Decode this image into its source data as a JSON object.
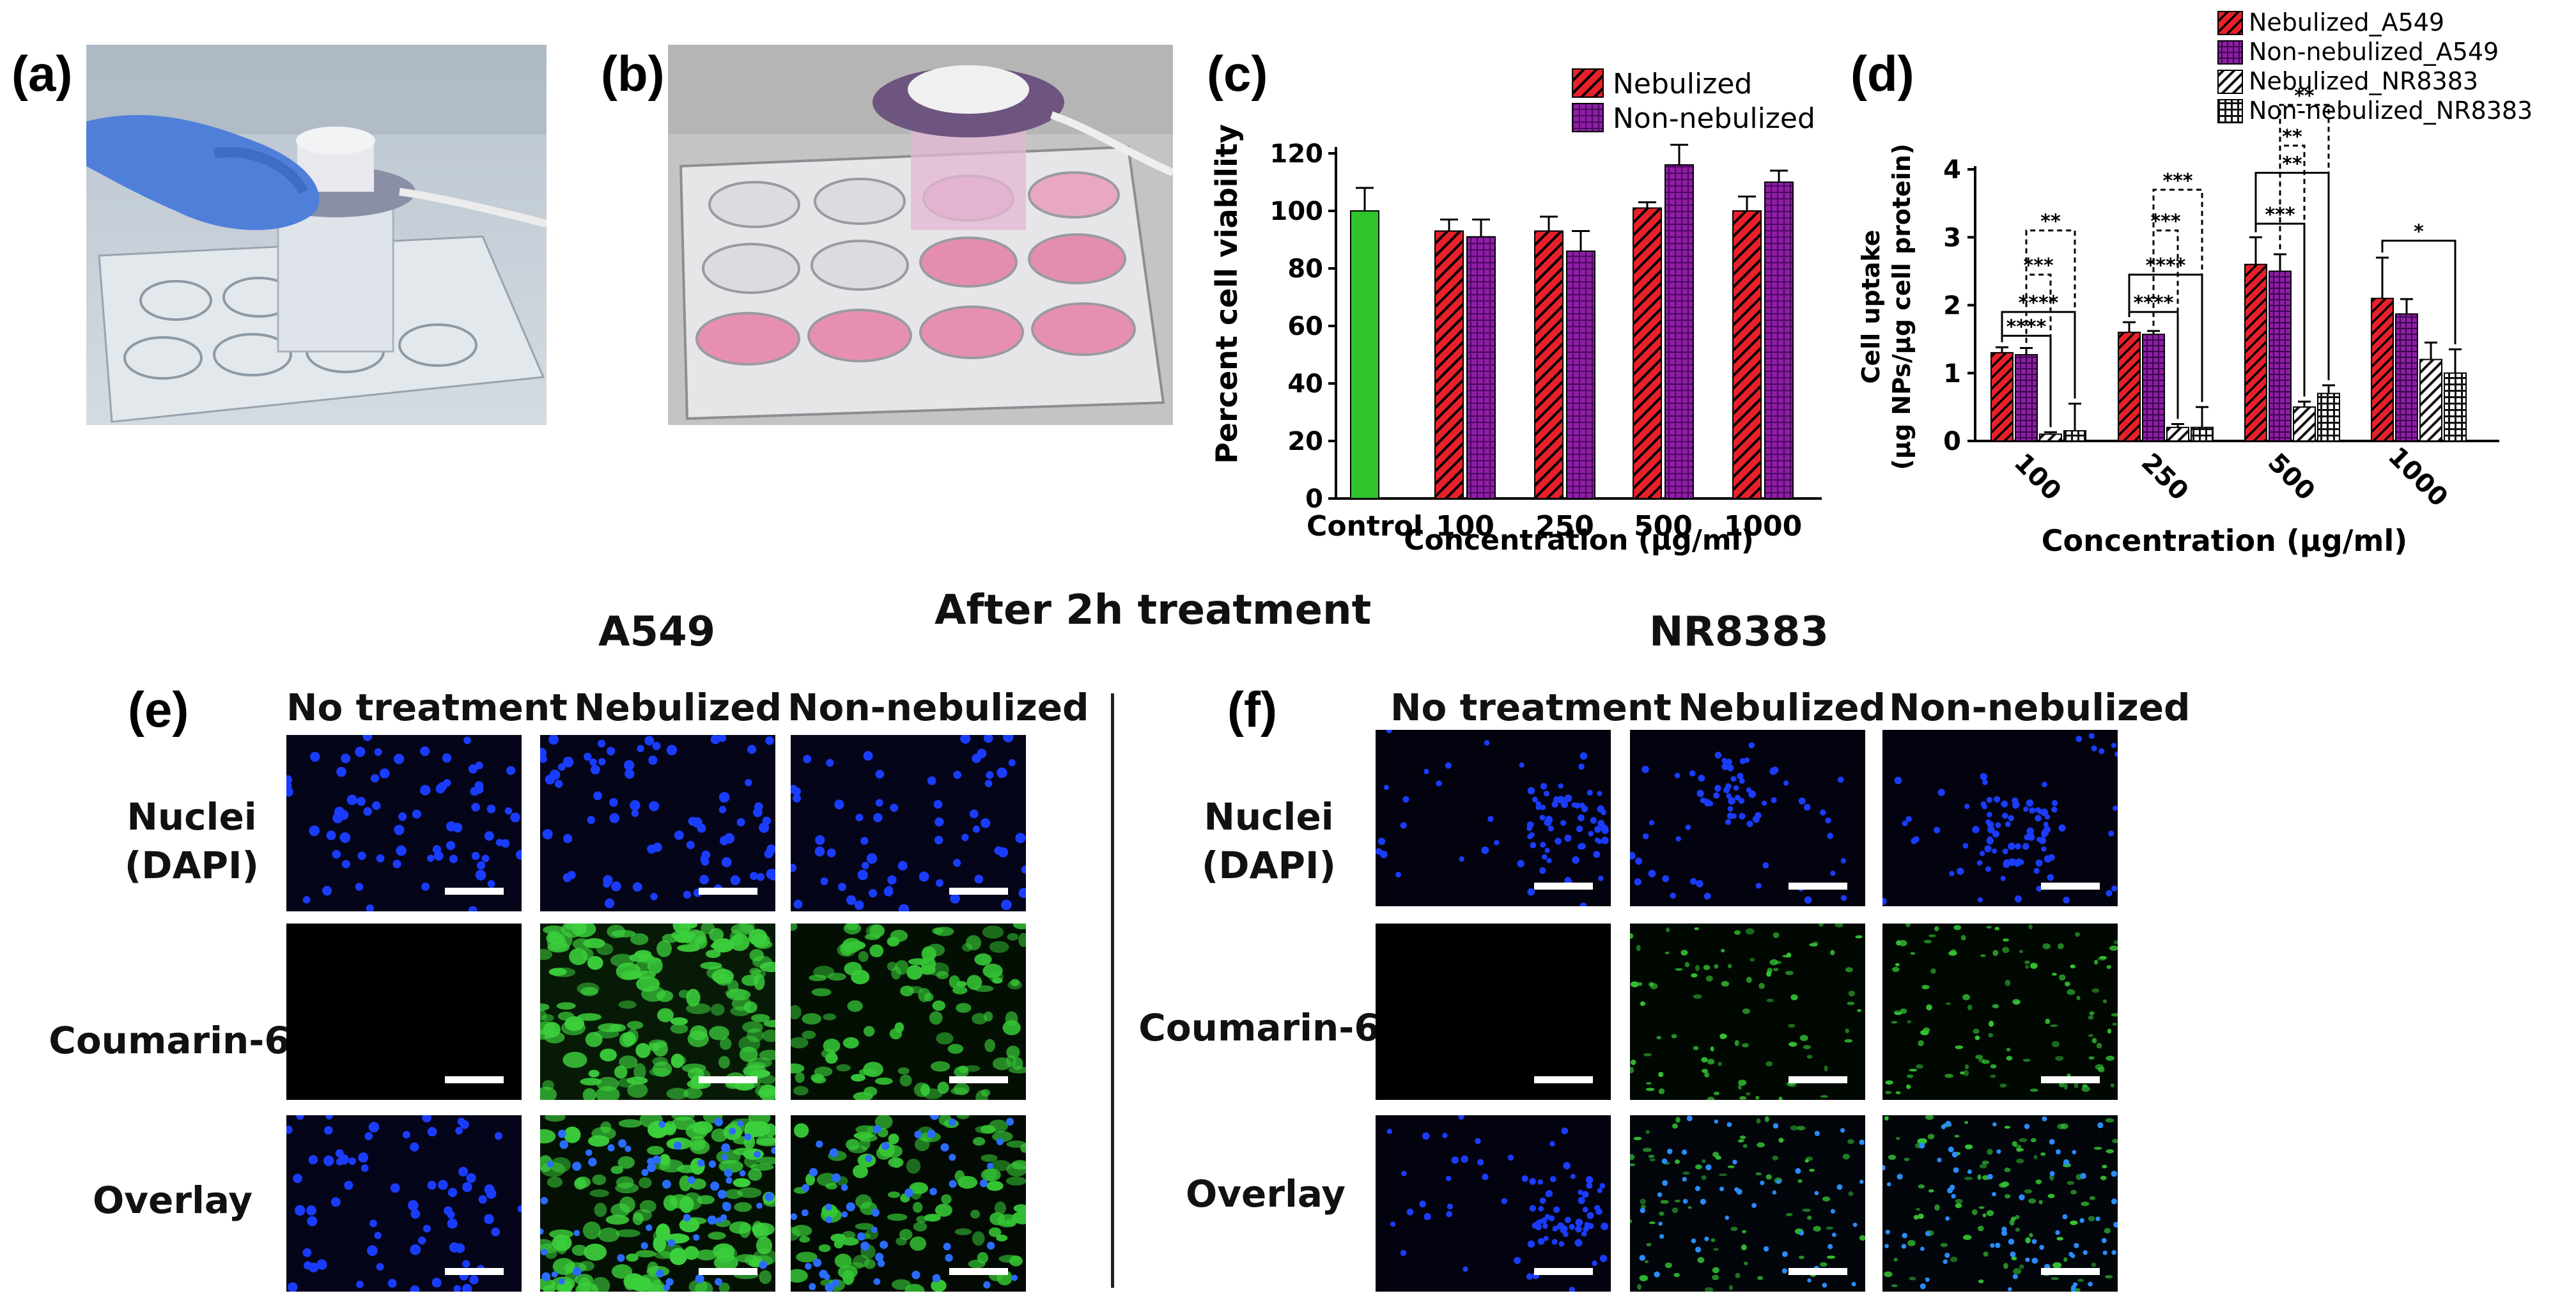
{
  "panel_labels": {
    "a": "(a)",
    "b": "(b)",
    "c": "(c)",
    "d": "(d)",
    "e": "(e)",
    "f": "(f)"
  },
  "colors": {
    "nebulized_red": "#e8202a",
    "non_nebulized_purple": "#8e1ea4",
    "control_green": "#2ec42a",
    "dapi_blue": "#1a3cff",
    "coumarin_green": "#30c030"
  },
  "chart_data": [
    {
      "id": "c",
      "type": "bar",
      "categories": [
        "Control",
        "100",
        "250",
        "500",
        "1000"
      ],
      "series": [
        {
          "name": "",
          "values": [
            100,
            null,
            null,
            null,
            null
          ],
          "errors": [
            8,
            null,
            null,
            null,
            null
          ],
          "color": "#2ec42a"
        },
        {
          "name": "Nebulized",
          "values": [
            null,
            93,
            93,
            101,
            100
          ],
          "errors": [
            null,
            4,
            5,
            2,
            5
          ],
          "color": "#e8202a"
        },
        {
          "name": "Non-nebulized",
          "values": [
            null,
            91,
            86,
            116,
            110
          ],
          "errors": [
            null,
            6,
            7,
            7,
            4
          ],
          "color": "#8e1ea4"
        }
      ],
      "xlabel": "Concentration (µg/ml)",
      "ylabel": "Percent cell viability",
      "ylim": [
        0,
        120
      ],
      "yticks": [
        "0",
        "20",
        "40",
        "60",
        "80",
        "100",
        "120"
      ],
      "legend": [
        "Nebulized",
        "Non-nebulized"
      ],
      "legend_position": "top-right",
      "grid": false
    },
    {
      "id": "d",
      "type": "bar",
      "categories": [
        "100",
        "250",
        "500",
        "1000"
      ],
      "series": [
        {
          "name": "Nebulized_A549",
          "values": [
            1.3,
            1.6,
            2.6,
            2.1
          ],
          "errors": [
            0.08,
            0.15,
            0.4,
            0.6
          ],
          "color": "#e8202a",
          "pattern": "red-hatch"
        },
        {
          "name": "Non-nebulized_A549",
          "values": [
            1.27,
            1.57,
            2.5,
            1.87
          ],
          "errors": [
            0.1,
            0.05,
            0.25,
            0.22
          ],
          "color": "#8e1ea4",
          "pattern": "purple-grid"
        },
        {
          "name": "Nebulized_NR8383",
          "values": [
            0.1,
            0.2,
            0.5,
            1.2
          ],
          "errors": [
            0.03,
            0.05,
            0.08,
            0.25
          ],
          "color": "#000000",
          "pattern": "black-hatch"
        },
        {
          "name": "Non-nebulized_NR8383",
          "values": [
            0.15,
            0.2,
            0.7,
            1.0
          ],
          "errors": [
            0.4,
            0.3,
            0.12,
            0.35
          ],
          "color": "#000000",
          "pattern": "black-grid"
        }
      ],
      "xlabel": "Concentration (µg/ml)",
      "ylabel": "Cell uptake",
      "ylabel2": "(µg NPs/µg cell protein)",
      "ylim": [
        0,
        4
      ],
      "yticks": [
        "0",
        "1",
        "2",
        "3",
        "4"
      ],
      "legend_position": "top",
      "grid": false,
      "significance": [
        {
          "group": 0,
          "from": 0,
          "to": 2,
          "label": "****",
          "style": "solid",
          "y": 1.55
        },
        {
          "group": 0,
          "from": 0,
          "to": 3,
          "label": "****",
          "style": "solid",
          "y": 1.9
        },
        {
          "group": 0,
          "from": 1,
          "to": 2,
          "label": "***",
          "style": "dashed",
          "y": 2.45
        },
        {
          "group": 0,
          "from": 1,
          "to": 3,
          "label": "**",
          "style": "dashed",
          "y": 3.1
        },
        {
          "group": 1,
          "from": 0,
          "to": 2,
          "label": "****",
          "style": "solid",
          "y": 1.9
        },
        {
          "group": 1,
          "from": 0,
          "to": 3,
          "label": "****",
          "style": "solid",
          "y": 2.45
        },
        {
          "group": 1,
          "from": 1,
          "to": 2,
          "label": "***",
          "style": "dashed",
          "y": 3.1
        },
        {
          "group": 1,
          "from": 1,
          "to": 3,
          "label": "***",
          "style": "dashed",
          "y": 3.7
        },
        {
          "group": 2,
          "from": 0,
          "to": 2,
          "label": "***",
          "style": "solid",
          "y": 3.2
        },
        {
          "group": 2,
          "from": 0,
          "to": 3,
          "label": "**",
          "style": "solid",
          "y": 3.95
        },
        {
          "group": 2,
          "from": 1,
          "to": 2,
          "label": "**",
          "style": "dashed",
          "y": 4.35
        },
        {
          "group": 2,
          "from": 1,
          "to": 3,
          "label": "**",
          "style": "dashed",
          "y": 4.95
        },
        {
          "group": 3,
          "from": 0,
          "to": 3,
          "label": "*",
          "style": "solid",
          "y": 2.95
        }
      ]
    }
  ],
  "microscopy": {
    "title": "After 2h treatment",
    "a549": {
      "title": "A549",
      "columns": [
        "No treatment",
        "Nebulized",
        "Non-nebulized"
      ],
      "rows": [
        "Nuclei\n(DAPI)",
        "Coumarin-6",
        "Overlay"
      ]
    },
    "nr8383": {
      "title": "NR8383",
      "columns": [
        "No treatment",
        "Nebulized",
        "Non-nebulized"
      ],
      "rows": [
        "Nuclei\n(DAPI)",
        "Coumarin-6",
        "Overlay"
      ]
    }
  }
}
